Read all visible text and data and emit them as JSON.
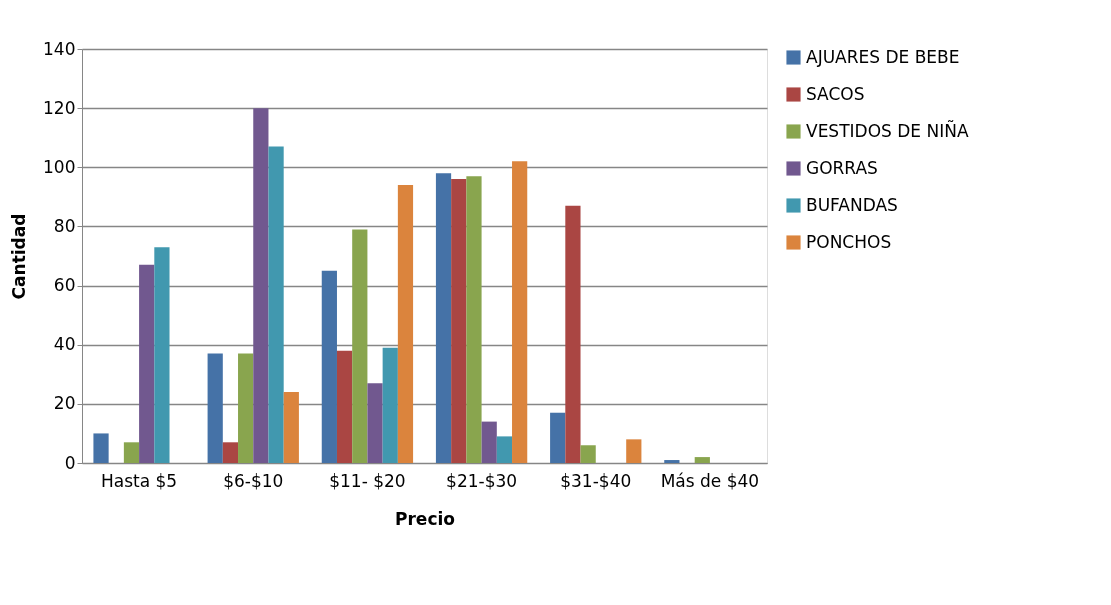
{
  "chart_data": {
    "type": "bar",
    "xlabel": "Precio",
    "ylabel": "Cantidad",
    "categories": [
      "Hasta $5",
      "$6-$10",
      "$11- $20",
      "$21-$30",
      "$31-$40",
      "Más de $40"
    ],
    "series": [
      {
        "name": "AJUARES  DE BEBE",
        "color": "#4572a7",
        "values": [
          10,
          37,
          65,
          98,
          17,
          1
        ]
      },
      {
        "name": "SACOS",
        "color": "#aa4643",
        "values": [
          null,
          7,
          38,
          96,
          87,
          null
        ]
      },
      {
        "name": "VESTIDOS DE NIÑA",
        "color": "#89a54e",
        "values": [
          7,
          37,
          79,
          97,
          6,
          2
        ]
      },
      {
        "name": "GORRAS",
        "color": "#71588f",
        "values": [
          67,
          120,
          27,
          14,
          null,
          null
        ]
      },
      {
        "name": "BUFANDAS",
        "color": "#4198af",
        "values": [
          73,
          107,
          39,
          9,
          null,
          null
        ]
      },
      {
        "name": "PONCHOS",
        "color": "#db843d",
        "values": [
          null,
          24,
          94,
          102,
          8,
          null
        ]
      }
    ],
    "ylim": [
      0,
      140
    ],
    "yticks": [
      0,
      20,
      40,
      60,
      80,
      100,
      120,
      140
    ],
    "grid": "y",
    "legend": "right"
  }
}
